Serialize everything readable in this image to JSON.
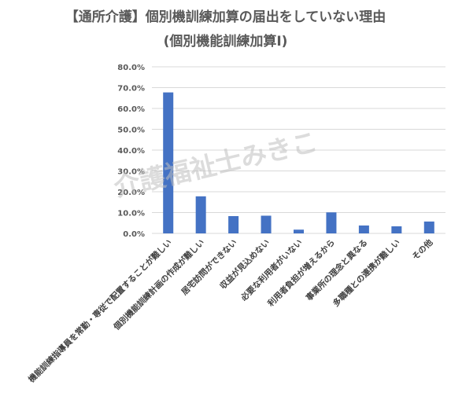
{
  "chart_data": {
    "type": "bar",
    "title": "【通所介護】個別機訓練加算の届出をしていない理由",
    "subtitle": "(個別機能訓練加算Ⅰ)",
    "categories": [
      "機能訓練指導員を常勤・専従で配置することが難しい",
      "個別機能訓練計画の作成が難しい",
      "居宅訪問ができない",
      "収益が見込めない",
      "必要な利用者がいない",
      "利用者負担が増えるから",
      "事業所の理念と異なる",
      "多職種との連携が難しい",
      "その他"
    ],
    "values": [
      67.7,
      17.8,
      8.3,
      8.5,
      1.8,
      10.1,
      3.8,
      3.4,
      5.7
    ],
    "y_ticks": [
      "0.0%",
      "10.0%",
      "20.0%",
      "30.0%",
      "40.0%",
      "50.0%",
      "60.0%",
      "70.0%",
      "80.0%"
    ],
    "ylim": [
      0,
      80
    ],
    "grid": true,
    "bar_color": "#4472c4",
    "grid_color": "#d9d9d9"
  },
  "watermark": "介護福祉士みきこ"
}
